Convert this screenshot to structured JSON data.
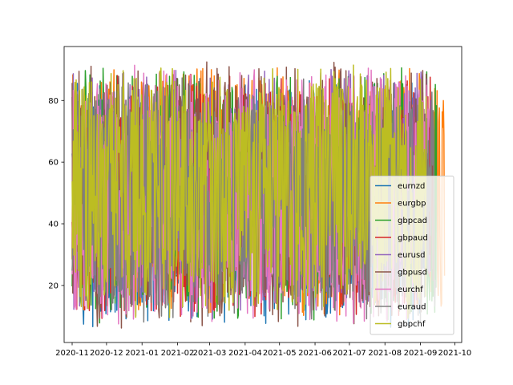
{
  "chart_data": {
    "type": "line",
    "title": "",
    "xlabel": "",
    "ylabel": "",
    "x_start": "2020-11-01",
    "x_end": "2021-09-22",
    "xlim": [
      "2020-10-25",
      "2021-10-07"
    ],
    "ylim": [
      1.5,
      97.5
    ],
    "x_ticks": [
      "2020-11",
      "2020-12",
      "2021-01",
      "2021-02",
      "2021-03",
      "2021-04",
      "2021-05",
      "2021-06",
      "2021-07",
      "2021-08",
      "2021-09",
      "2021-10"
    ],
    "y_ticks": [
      20,
      40,
      60,
      80
    ],
    "grid": false,
    "legend_position": "lower right",
    "series": [
      {
        "name": "eurnzd",
        "color": "#1f77b4",
        "y_range": [
          6,
          88
        ],
        "end_date": "2021-09-04"
      },
      {
        "name": "eurgbp",
        "color": "#ff7f0e",
        "y_range": [
          10,
          92
        ],
        "end_date": "2021-09-22"
      },
      {
        "name": "gbpcad",
        "color": "#2ca02c",
        "y_range": [
          7,
          91
        ],
        "end_date": "2021-09-15"
      },
      {
        "name": "gbpaud",
        "color": "#d62728",
        "y_range": [
          9,
          89
        ],
        "end_date": "2021-09-12"
      },
      {
        "name": "eurusd",
        "color": "#9467bd",
        "y_range": [
          11,
          91
        ],
        "end_date": "2021-09-10"
      },
      {
        "name": "gbpusd",
        "color": "#8c564b",
        "y_range": [
          6,
          93
        ],
        "end_date": "2021-09-13"
      },
      {
        "name": "eurchf",
        "color": "#e377c2",
        "y_range": [
          6,
          92
        ],
        "end_date": "2021-09-08"
      },
      {
        "name": "euraud",
        "color": "#7f7f7f",
        "y_range": [
          8,
          88
        ],
        "end_date": "2021-09-14"
      },
      {
        "name": "gbpchf",
        "color": "#bcbd22",
        "y_range": [
          9,
          92
        ],
        "end_date": "2021-09-06"
      }
    ]
  }
}
